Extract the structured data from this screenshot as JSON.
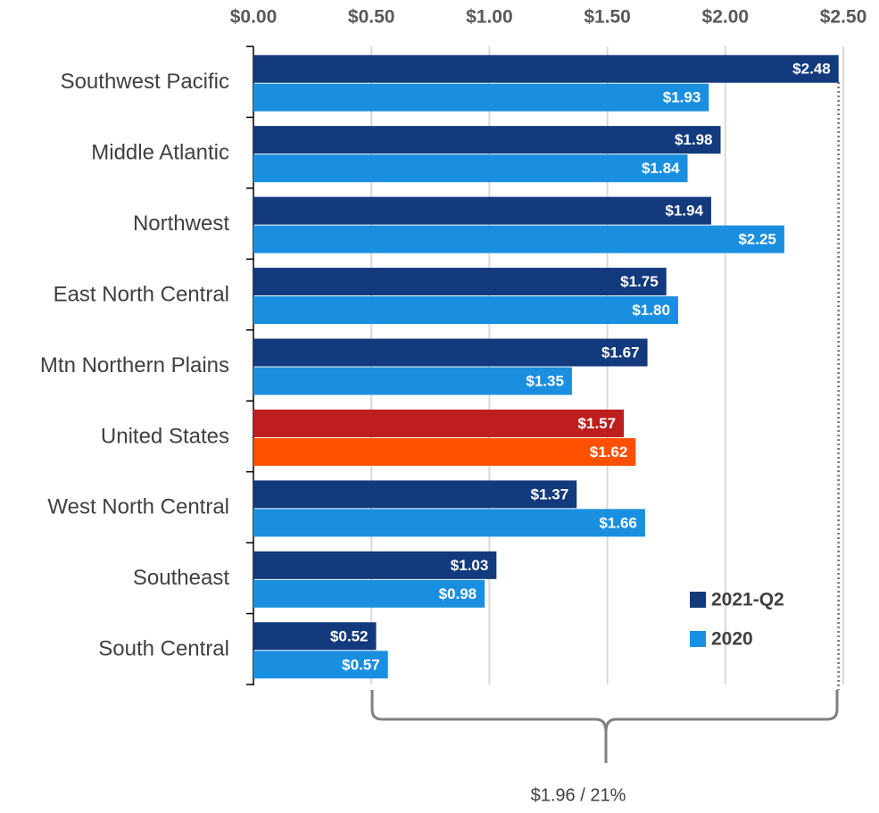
{
  "chart_data": {
    "type": "bar",
    "orientation": "horizontal",
    "categories": [
      "Southwest Pacific",
      "Middle Atlantic",
      "Northwest",
      "East North Central",
      "Mtn Northern Plains",
      "United States",
      "West North Central",
      "Southeast",
      "South Central"
    ],
    "series": [
      {
        "name": "2021-Q2",
        "color": "#123a7c",
        "colors": [
          "#123a7c",
          "#123a7c",
          "#123a7c",
          "#123a7c",
          "#123a7c",
          "#be1e1e",
          "#123a7c",
          "#123a7c",
          "#123a7c"
        ],
        "values": [
          2.48,
          1.98,
          1.94,
          1.75,
          1.67,
          1.57,
          1.37,
          1.03,
          0.52
        ],
        "value_labels": [
          "$2.48",
          "$1.98",
          "$1.94",
          "$1.75",
          "$1.67",
          "$1.57",
          "$1.37",
          "$1.03",
          "$0.52"
        ]
      },
      {
        "name": "2020",
        "color": "#1a8fe0",
        "colors": [
          "#1a8fe0",
          "#1a8fe0",
          "#1a8fe0",
          "#1a8fe0",
          "#1a8fe0",
          "#ff5000",
          "#1a8fe0",
          "#1a8fe0",
          "#1a8fe0"
        ],
        "values": [
          1.93,
          1.84,
          2.25,
          1.8,
          1.35,
          1.62,
          1.66,
          0.98,
          0.57
        ],
        "value_labels": [
          "$1.93",
          "$1.84",
          "$2.25",
          "$1.80",
          "$1.35",
          "$1.62",
          "$1.66",
          "$0.98",
          "$0.57"
        ]
      }
    ],
    "xlim": [
      0,
      2.5
    ],
    "xticks": [
      {
        "value": 0,
        "label": "$0.00"
      },
      {
        "value": 0.5,
        "label": "$0.50"
      },
      {
        "value": 1,
        "label": "$1.00"
      },
      {
        "value": 1.5,
        "label": "$1.50"
      },
      {
        "value": 2,
        "label": "$2.00"
      },
      {
        "value": 2.5,
        "label": "$2.50"
      }
    ],
    "grid": true,
    "legend": "lower right",
    "annotation": "$1.96 / 21%"
  }
}
